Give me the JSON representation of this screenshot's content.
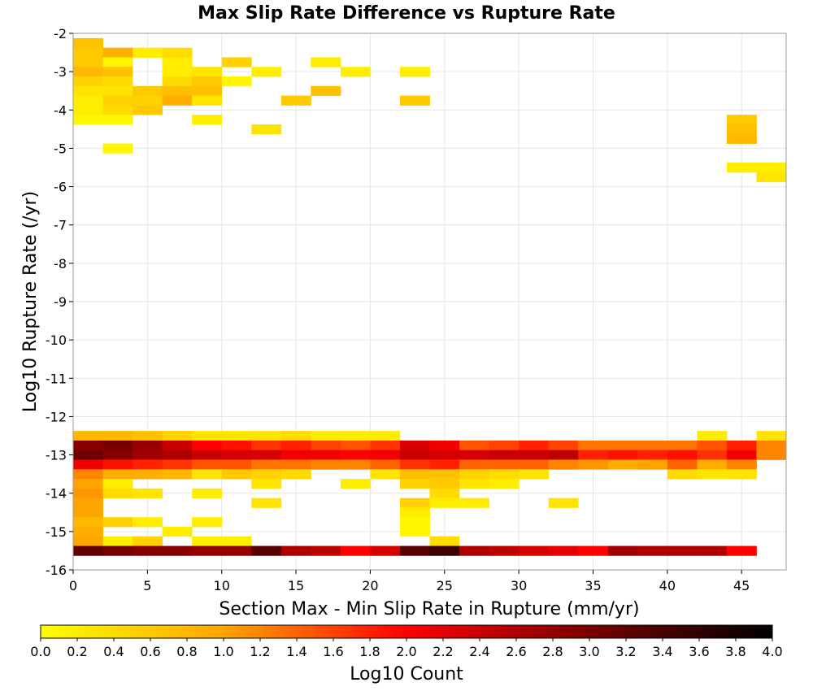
{
  "chart_data": {
    "type": "heatmap",
    "title": "Max Slip Rate Difference vs Rupture Rate",
    "xlabel": "Section Max - Min Slip Rate in Rupture (mm/yr)",
    "ylabel": "Log10 Rupture Rate (/yr)",
    "xlim": [
      0,
      48
    ],
    "ylim": [
      -16,
      -2
    ],
    "x_ticks": [
      "0",
      "5",
      "10",
      "15",
      "20",
      "25",
      "30",
      "35",
      "40",
      "45"
    ],
    "y_ticks": [
      "-2",
      "-3",
      "-4",
      "-5",
      "-6",
      "-7",
      "-8",
      "-9",
      "-10",
      "-11",
      "-12",
      "-13",
      "-14",
      "-15",
      "-16"
    ],
    "grid": true,
    "x_bin_width": 2,
    "y_bin_height": 0.25,
    "colorbar": {
      "label": "Log10 Count",
      "min": 0,
      "max": 4,
      "ticks": [
        "0.0",
        "0.2",
        "0.4",
        "0.6",
        "0.8",
        "1.0",
        "1.2",
        "1.4",
        "1.6",
        "1.8",
        "2.0",
        "2.2",
        "2.4",
        "2.6",
        "2.8",
        "3.0",
        "3.2",
        "3.4",
        "3.6",
        "3.8",
        "4.0"
      ],
      "colors": [
        "#ffff00",
        "#ffa500",
        "#ff0000",
        "#000000"
      ]
    },
    "cells": [
      [
        1,
        -2.25,
        0.7
      ],
      [
        1,
        -2.5,
        0.6
      ],
      [
        1,
        -2.75,
        0.6
      ],
      [
        1,
        -3,
        0.8
      ],
      [
        1,
        -3.25,
        0.5
      ],
      [
        1,
        -3.5,
        0.3
      ],
      [
        1,
        -3.75,
        0.2
      ],
      [
        1,
        -4,
        0.2
      ],
      [
        1,
        -4.25,
        0.1
      ],
      [
        3,
        -2.5,
        0.9
      ],
      [
        3,
        -2.75,
        0.1
      ],
      [
        3,
        -3,
        0.7
      ],
      [
        3,
        -3.25,
        0.4
      ],
      [
        3,
        -3.5,
        0.3
      ],
      [
        3,
        -3.75,
        0.5
      ],
      [
        3,
        -4,
        0.4
      ],
      [
        3,
        -4.25,
        0.1
      ],
      [
        3,
        -5,
        0.1
      ],
      [
        5,
        -2.5,
        0.2
      ],
      [
        5,
        -3.5,
        0.6
      ],
      [
        5,
        -3.75,
        0.5
      ],
      [
        5,
        -4,
        0.6
      ],
      [
        7,
        -2.5,
        0.4
      ],
      [
        7,
        -2.75,
        0.2
      ],
      [
        7,
        -3,
        0.2
      ],
      [
        7,
        -3.25,
        0.4
      ],
      [
        7,
        -3.5,
        0.7
      ],
      [
        7,
        -3.75,
        0.9
      ],
      [
        9,
        -3,
        0.3
      ],
      [
        9,
        -3.25,
        0.6
      ],
      [
        9,
        -3.5,
        0.7
      ],
      [
        9,
        -3.75,
        0.3
      ],
      [
        9,
        -4.25,
        0.2
      ],
      [
        11,
        -2.75,
        0.5
      ],
      [
        11,
        -3.25,
        0.1
      ],
      [
        13,
        -3,
        0.2
      ],
      [
        13,
        -4.5,
        0.3
      ],
      [
        15,
        -3.75,
        0.6
      ],
      [
        17,
        -2.75,
        0.2
      ],
      [
        17,
        -3.5,
        0.7
      ],
      [
        19,
        -3,
        0.2
      ],
      [
        23,
        -3,
        0.2
      ],
      [
        23,
        -3.75,
        0.6
      ],
      [
        45,
        -4.25,
        0.6
      ],
      [
        45,
        -4.5,
        0.7
      ],
      [
        45,
        -4.75,
        0.8
      ],
      [
        45,
        -5.5,
        0.2
      ],
      [
        47,
        -5.5,
        0.2
      ],
      [
        47,
        -5.75,
        0.3
      ],
      [
        1,
        -12.5,
        0.8
      ],
      [
        3,
        -12.5,
        0.8
      ],
      [
        5,
        -12.5,
        0.7
      ],
      [
        7,
        -12.5,
        0.5
      ],
      [
        9,
        -12.5,
        0.3
      ],
      [
        11,
        -12.5,
        0.3
      ],
      [
        13,
        -12.5,
        0.3
      ],
      [
        15,
        -12.5,
        0.4
      ],
      [
        17,
        -12.5,
        0.2
      ],
      [
        19,
        -12.5,
        0.2
      ],
      [
        21,
        -12.5,
        0.2
      ],
      [
        43,
        -12.5,
        0.2
      ],
      [
        47,
        -12.5,
        0.3
      ],
      [
        1,
        -12.75,
        2.9
      ],
      [
        3,
        -12.75,
        3.0
      ],
      [
        5,
        -12.75,
        2.8
      ],
      [
        7,
        -12.75,
        2.4
      ],
      [
        9,
        -12.75,
        2.0
      ],
      [
        11,
        -12.75,
        1.9
      ],
      [
        13,
        -12.75,
        1.7
      ],
      [
        15,
        -12.75,
        1.8
      ],
      [
        17,
        -12.75,
        1.6
      ],
      [
        19,
        -12.75,
        1.5
      ],
      [
        21,
        -12.75,
        1.7
      ],
      [
        23,
        -12.75,
        2.3
      ],
      [
        25,
        -12.75,
        2.1
      ],
      [
        27,
        -12.75,
        1.5
      ],
      [
        29,
        -12.75,
        1.6
      ],
      [
        31,
        -12.75,
        1.8
      ],
      [
        33,
        -12.75,
        1.6
      ],
      [
        35,
        -12.75,
        1.3
      ],
      [
        37,
        -12.75,
        1.3
      ],
      [
        39,
        -12.75,
        1.3
      ],
      [
        41,
        -12.75,
        1.3
      ],
      [
        43,
        -12.75,
        1.5
      ],
      [
        45,
        -12.75,
        1.8
      ],
      [
        47,
        -12.75,
        1.2
      ],
      [
        1,
        -13,
        3.1
      ],
      [
        3,
        -13,
        2.9
      ],
      [
        5,
        -13,
        2.7
      ],
      [
        7,
        -13,
        2.6
      ],
      [
        9,
        -13,
        2.4
      ],
      [
        11,
        -13,
        2.3
      ],
      [
        13,
        -13,
        2.3
      ],
      [
        15,
        -13,
        2.1
      ],
      [
        17,
        -13,
        2.1
      ],
      [
        19,
        -13,
        2.0
      ],
      [
        21,
        -13,
        2.1
      ],
      [
        23,
        -13,
        2.4
      ],
      [
        25,
        -13,
        2.3
      ],
      [
        27,
        -13,
        2.3
      ],
      [
        29,
        -13,
        2.4
      ],
      [
        31,
        -13,
        2.4
      ],
      [
        33,
        -13,
        2.5
      ],
      [
        35,
        -13,
        1.8
      ],
      [
        37,
        -13,
        1.9
      ],
      [
        39,
        -13,
        1.8
      ],
      [
        41,
        -13,
        1.9
      ],
      [
        43,
        -13,
        1.7
      ],
      [
        45,
        -13,
        2.1
      ],
      [
        47,
        -13,
        1.2
      ],
      [
        1,
        -13.25,
        2.1
      ],
      [
        3,
        -13.25,
        1.9
      ],
      [
        5,
        -13.25,
        1.8
      ],
      [
        7,
        -13.25,
        1.7
      ],
      [
        9,
        -13.25,
        1.5
      ],
      [
        11,
        -13.25,
        1.5
      ],
      [
        13,
        -13.25,
        1.3
      ],
      [
        15,
        -13.25,
        1.3
      ],
      [
        17,
        -13.25,
        1.2
      ],
      [
        19,
        -13.25,
        1.2
      ],
      [
        21,
        -13.25,
        1.4
      ],
      [
        23,
        -13.25,
        1.7
      ],
      [
        25,
        -13.25,
        1.8
      ],
      [
        27,
        -13.25,
        1.4
      ],
      [
        29,
        -13.25,
        1.4
      ],
      [
        31,
        -13.25,
        1.4
      ],
      [
        33,
        -13.25,
        1.2
      ],
      [
        35,
        -13.25,
        1.1
      ],
      [
        37,
        -13.25,
        0.9
      ],
      [
        39,
        -13.25,
        1.0
      ],
      [
        41,
        -13.25,
        1.4
      ],
      [
        43,
        -13.25,
        0.9
      ],
      [
        45,
        -13.25,
        1.2
      ],
      [
        1,
        -13.5,
        1.2
      ],
      [
        3,
        -13.5,
        0.9
      ],
      [
        5,
        -13.5,
        0.9
      ],
      [
        7,
        -13.5,
        0.8
      ],
      [
        9,
        -13.5,
        0.3
      ],
      [
        11,
        -13.5,
        0.6
      ],
      [
        13,
        -13.5,
        0.5
      ],
      [
        15,
        -13.5,
        0.4
      ],
      [
        21,
        -13.5,
        0.3
      ],
      [
        23,
        -13.5,
        0.7
      ],
      [
        25,
        -13.5,
        0.7
      ],
      [
        27,
        -13.5,
        0.5
      ],
      [
        29,
        -13.5,
        0.4
      ],
      [
        31,
        -13.5,
        0.3
      ],
      [
        41,
        -13.5,
        0.4
      ],
      [
        43,
        -13.5,
        0.3
      ],
      [
        45,
        -13.5,
        0.3
      ],
      [
        1,
        -13.75,
        1.0
      ],
      [
        3,
        -13.75,
        0.2
      ],
      [
        13,
        -13.75,
        0.3
      ],
      [
        19,
        -13.75,
        0.2
      ],
      [
        23,
        -13.75,
        0.5
      ],
      [
        25,
        -13.75,
        0.6
      ],
      [
        27,
        -13.75,
        0.3
      ],
      [
        29,
        -13.75,
        0.2
      ],
      [
        1,
        -14,
        1.1
      ],
      [
        3,
        -14,
        0.4
      ],
      [
        5,
        -14,
        0.3
      ],
      [
        9,
        -14,
        0.2
      ],
      [
        25,
        -14,
        0.4
      ],
      [
        1,
        -14.25,
        1.0
      ],
      [
        13,
        -14.25,
        0.3
      ],
      [
        23,
        -14.25,
        0.5
      ],
      [
        25,
        -14.25,
        0.2
      ],
      [
        27,
        -14.25,
        0.2
      ],
      [
        33,
        -14.25,
        0.3
      ],
      [
        1,
        -14.5,
        1.0
      ],
      [
        23,
        -14.5,
        0.2
      ],
      [
        1,
        -14.75,
        0.8
      ],
      [
        3,
        -14.75,
        0.5
      ],
      [
        5,
        -14.75,
        0.2
      ],
      [
        9,
        -14.75,
        0.2
      ],
      [
        23,
        -14.75,
        0.1
      ],
      [
        1,
        -15,
        0.9
      ],
      [
        7,
        -15,
        0.2
      ],
      [
        23,
        -15,
        0.1
      ],
      [
        1,
        -15.25,
        1.0
      ],
      [
        3,
        -15.25,
        0.2
      ],
      [
        5,
        -15.25,
        0.5
      ],
      [
        9,
        -15.25,
        0.2
      ],
      [
        11,
        -15.25,
        0.2
      ],
      [
        25,
        -15.25,
        0.4
      ],
      [
        1,
        -15.5,
        3.2
      ],
      [
        3,
        -15.5,
        3.0
      ],
      [
        5,
        -15.5,
        2.9
      ],
      [
        7,
        -15.5,
        2.9
      ],
      [
        9,
        -15.5,
        2.8
      ],
      [
        11,
        -15.5,
        2.8
      ],
      [
        13,
        -15.5,
        3.3
      ],
      [
        15,
        -15.5,
        2.6
      ],
      [
        17,
        -15.5,
        2.5
      ],
      [
        19,
        -15.5,
        2.0
      ],
      [
        21,
        -15.5,
        2.3
      ],
      [
        23,
        -15.5,
        3.3
      ],
      [
        25,
        -15.5,
        3.5
      ],
      [
        27,
        -15.5,
        2.6
      ],
      [
        29,
        -15.5,
        2.5
      ],
      [
        31,
        -15.5,
        2.3
      ],
      [
        33,
        -15.5,
        2.2
      ],
      [
        35,
        -15.5,
        2.0
      ],
      [
        37,
        -15.5,
        2.7
      ],
      [
        39,
        -15.5,
        2.6
      ],
      [
        41,
        -15.5,
        2.6
      ],
      [
        43,
        -15.5,
        2.6
      ],
      [
        45,
        -15.5,
        2.0
      ]
    ]
  }
}
